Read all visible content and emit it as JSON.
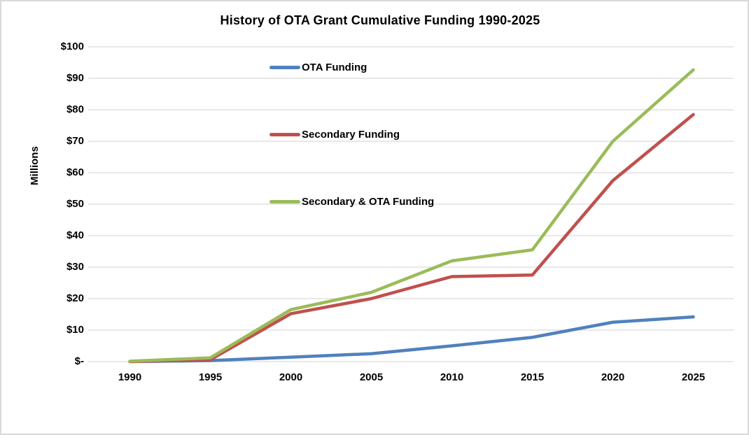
{
  "title": "History of OTA Grant Cumulative Funding 1990-2025",
  "colors": {
    "grid": "#d9d9d9",
    "text": "#000000",
    "canvas_border": "#d9d9d9",
    "background": "#ffffff"
  },
  "chart_data": {
    "type": "line",
    "title": "History of OTA Grant Cumulative Funding 1990-2025",
    "xlabel": "",
    "ylabel": "Millions",
    "x": [
      1990,
      1995,
      2000,
      2005,
      2010,
      2015,
      2020,
      2025
    ],
    "x_tick_labels": [
      "1990",
      "1995",
      "2000",
      "2005",
      "2010",
      "2015",
      "2020",
      "2025"
    ],
    "y_tick_values": [
      0,
      10,
      20,
      30,
      40,
      50,
      60,
      70,
      80,
      90,
      100
    ],
    "y_tick_labels": [
      "$-",
      "$10",
      "$20",
      "$30",
      "$40",
      "$50",
      "$60",
      "$70",
      "$80",
      "$90",
      "$100"
    ],
    "ylim": [
      0,
      100
    ],
    "grid": "horizontal",
    "legend_position": "inside-upper-left-stacked",
    "series": [
      {
        "name": "OTA Funding",
        "color": "#4f81bd",
        "values": [
          0,
          0.3,
          1.4,
          2.5,
          5,
          7.7,
          12.5,
          14.2
        ]
      },
      {
        "name": "Secondary Funding",
        "color": "#c0504d",
        "values": [
          0,
          0.6,
          15.2,
          20,
          27,
          27.5,
          57.5,
          78.5
        ]
      },
      {
        "name": "Secondary & OTA Funding",
        "color": "#9bbb59",
        "values": [
          0.1,
          1.2,
          16.5,
          22,
          32,
          35.5,
          70,
          92.7
        ]
      }
    ]
  }
}
